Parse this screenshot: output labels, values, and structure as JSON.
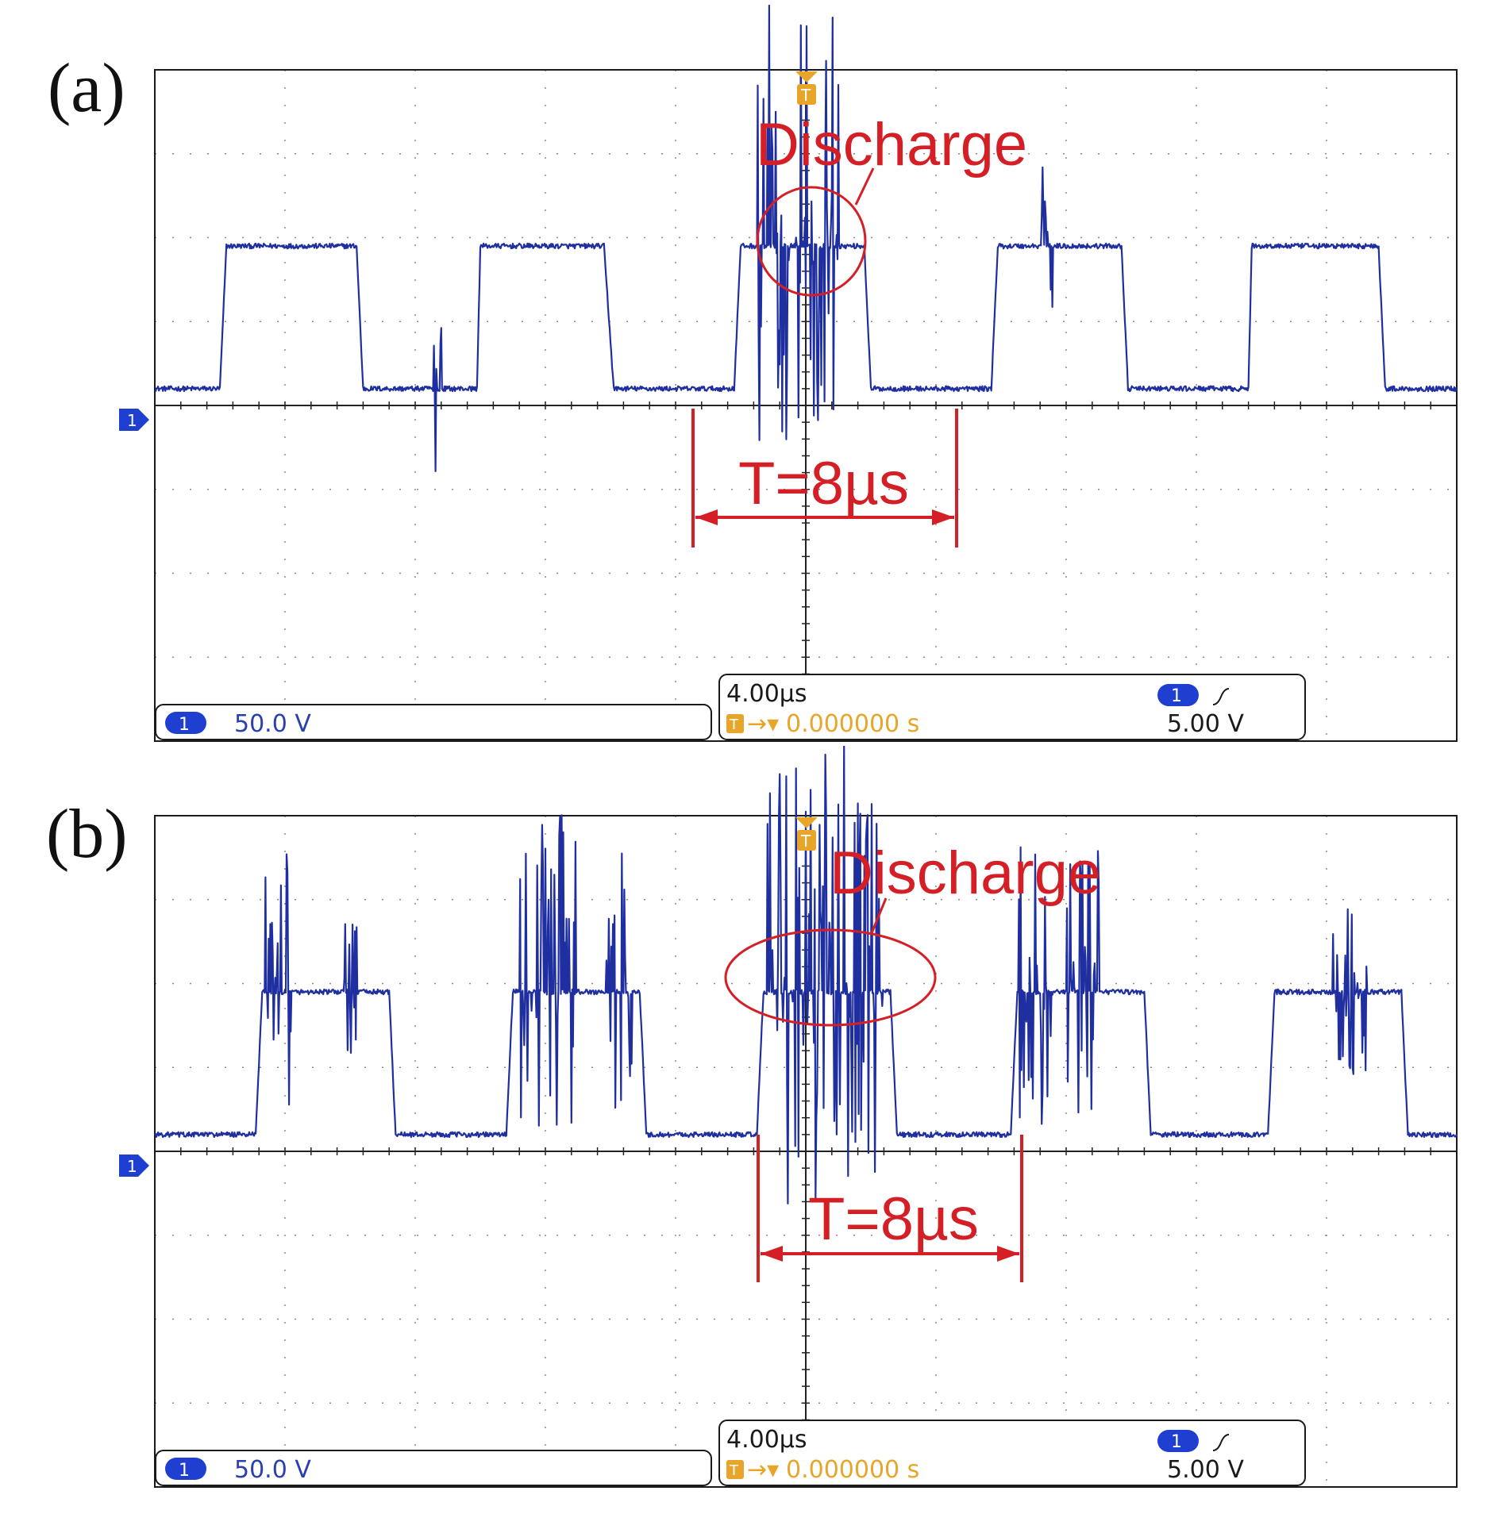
{
  "colors": {
    "trace": "#1f2fa0",
    "annotation": "#d51f26",
    "grid": "#8a8a8a",
    "axis": "#222222",
    "channel_badge": "#1f3fd0",
    "trigger": "#e7a52a"
  },
  "icons": [
    "channel-1-marker-icon",
    "trigger-marker-icon",
    "rising-edge-icon"
  ],
  "panels": [
    {
      "label": "(a)",
      "annotation": "Discharge",
      "period_label": "T=8µs",
      "status": {
        "channel_num": "1",
        "volts_per_div": "50.0 V",
        "time_per_div": "4.00µs",
        "trigger_pos": "0.000000 s",
        "trigger_level": "5.00 V"
      }
    },
    {
      "label": "(b)",
      "annotation": "Discharge",
      "period_label": "T=8µs",
      "status": {
        "channel_num": "1",
        "volts_per_div": "50.0 V",
        "time_per_div": "4.00µs",
        "trigger_pos": "0.000000 s",
        "trigger_level": "5.00 V"
      }
    }
  ],
  "chart_data": [
    {
      "type": "line",
      "title": "(a)",
      "x_unit": "µs",
      "y_unit": "V",
      "x_per_div": 4,
      "y_per_div": 50,
      "xlim": [
        -20,
        20
      ],
      "ylim": [
        -200,
        200
      ],
      "grid": true,
      "period_us": 8,
      "series": [
        {
          "x": [
            -20,
            -18.9,
            -18.0,
            -17.8,
            -13.8,
            -13.6,
            -12.6,
            -11.3,
            -10.1,
            -10.0,
            -6.2,
            -5.9,
            -4.8,
            -3.5,
            -2.2,
            -2.0,
            1.8,
            2.0,
            3.0,
            4.4,
            5.7,
            5.9,
            9.7,
            9.9,
            11.0,
            12.2,
            13.6,
            13.7,
            17.6,
            17.8,
            18.8,
            20
          ],
          "y": [
            10,
            10,
            10,
            95,
            95,
            10,
            10,
            10,
            10,
            95,
            95,
            10,
            10,
            10,
            10,
            95,
            95,
            10,
            10,
            10,
            10,
            95,
            95,
            10,
            10,
            10,
            10,
            95,
            95,
            10,
            10,
            10
          ]
        }
      ],
      "annotations": [
        {
          "text": "Discharge",
          "x_us": 0,
          "y_v": 95
        },
        {
          "text": "T=8µs",
          "x_from_us": -3.5,
          "x_to_us": 4.5
        }
      ]
    },
    {
      "type": "line",
      "title": "(b)",
      "x_unit": "µs",
      "y_unit": "V",
      "x_per_div": 4,
      "y_per_div": 50,
      "xlim": [
        -20,
        20
      ],
      "ylim": [
        -200,
        200
      ],
      "grid": true,
      "period_us": 8,
      "series": [
        {
          "x": [
            -20,
            -18.0,
            -16.9,
            -16.7,
            -12.8,
            -12.6,
            -11.5,
            -10.3,
            -9.2,
            -9.0,
            -5.1,
            -4.9,
            -3.8,
            -1.5,
            -1.3,
            2.6,
            2.8,
            3.9,
            6.3,
            6.5,
            10.4,
            10.6,
            11.7,
            14.2,
            14.4,
            18.3,
            18.5,
            19.4,
            20
          ],
          "y": [
            10,
            10,
            10,
            95,
            95,
            10,
            10,
            10,
            10,
            95,
            95,
            10,
            10,
            10,
            95,
            95,
            10,
            10,
            10,
            95,
            95,
            10,
            10,
            10,
            95,
            95,
            10,
            10,
            10
          ]
        }
      ],
      "annotations": [
        {
          "text": "Discharge",
          "x_us": 1.0,
          "y_v": 130
        },
        {
          "text": "T=8µs",
          "x_from_us": -1.5,
          "x_to_us": 6.5
        }
      ]
    }
  ]
}
